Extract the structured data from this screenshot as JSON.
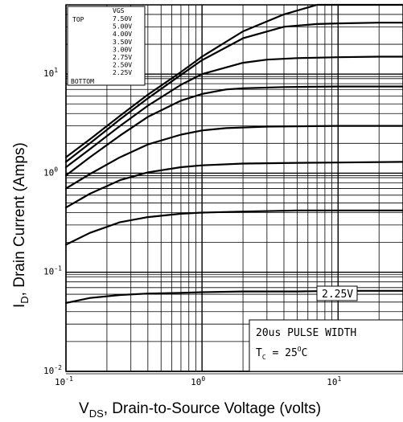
{
  "chart_data": {
    "type": "line",
    "x_scale": "log",
    "y_scale": "log",
    "xlim": [
      0.1,
      30
    ],
    "ylim": [
      0.01,
      50
    ],
    "grid": true,
    "xlabel": {
      "main": "V",
      "sub": "DS",
      "rest": ", Drain-to-Source Voltage (volts)"
    },
    "ylabel": {
      "main": "I",
      "sub": "D",
      "rest": ", Drain Current (Amps)"
    },
    "x_ticks": [
      {
        "base": "10",
        "exp": "-1",
        "value": 0.1
      },
      {
        "base": "10",
        "exp": "0",
        "value": 1
      },
      {
        "base": "10",
        "exp": "1",
        "value": 10
      }
    ],
    "y_ticks": [
      {
        "base": "10",
        "exp": "-2",
        "value": 0.01
      },
      {
        "base": "10",
        "exp": "-1",
        "value": 0.1
      },
      {
        "base": "10",
        "exp": "0",
        "value": 1
      },
      {
        "base": "10",
        "exp": "1",
        "value": 10
      }
    ],
    "legend": {
      "header": "VGS",
      "top_label": "TOP",
      "bottom_label": "BOTTOM",
      "entries": [
        "7.50V",
        "5.00V",
        "4.00V",
        "3.50V",
        "3.00V",
        "2.75V",
        "2.50V",
        "2.25V"
      ]
    },
    "series": [
      {
        "name": "7.50V",
        "x": [
          0.1,
          0.15,
          0.25,
          0.4,
          0.7,
          1.0,
          2.0,
          4.0,
          7.0,
          10.0,
          20.0,
          30.0
        ],
        "y": [
          1.45,
          2.2,
          3.8,
          6.2,
          10.5,
          15.0,
          27.0,
          40.0,
          50.0,
          50.0,
          50.0,
          50.0
        ]
      },
      {
        "name": "5.00V",
        "x": [
          0.1,
          0.15,
          0.25,
          0.4,
          0.7,
          1.0,
          2.0,
          4.0,
          7.0,
          10.0,
          20.0,
          30.0
        ],
        "y": [
          1.3,
          2.0,
          3.5,
          5.7,
          9.8,
          13.8,
          23.0,
          30.0,
          32.0,
          32.5,
          33.0,
          33.0
        ]
      },
      {
        "name": "4.00V",
        "x": [
          0.1,
          0.15,
          0.25,
          0.4,
          0.7,
          1.0,
          2.0,
          3.0,
          5.0,
          10.0,
          20.0,
          30.0
        ],
        "y": [
          1.15,
          1.75,
          3.0,
          4.8,
          7.8,
          10.0,
          13.0,
          14.0,
          14.5,
          14.8,
          15.0,
          15.0
        ]
      },
      {
        "name": "3.50V",
        "x": [
          0.1,
          0.15,
          0.25,
          0.4,
          0.7,
          1.0,
          1.5,
          2.0,
          4.0,
          10.0,
          20.0,
          30.0
        ],
        "y": [
          0.95,
          1.45,
          2.4,
          3.7,
          5.4,
          6.3,
          7.0,
          7.2,
          7.4,
          7.5,
          7.5,
          7.5
        ]
      },
      {
        "name": "3.00V",
        "x": [
          0.1,
          0.15,
          0.25,
          0.4,
          0.7,
          1.0,
          1.5,
          3.0,
          10.0,
          30.0
        ],
        "y": [
          0.7,
          0.98,
          1.45,
          1.95,
          2.45,
          2.7,
          2.85,
          2.95,
          3.0,
          3.0
        ]
      },
      {
        "name": "2.75V",
        "x": [
          0.1,
          0.15,
          0.25,
          0.4,
          0.7,
          1.0,
          2.0,
          5.0,
          10.0,
          30.0
        ],
        "y": [
          0.45,
          0.62,
          0.85,
          1.02,
          1.15,
          1.2,
          1.25,
          1.27,
          1.28,
          1.3
        ]
      },
      {
        "name": "2.50V",
        "x": [
          0.1,
          0.15,
          0.25,
          0.4,
          0.7,
          1.0,
          2.0,
          5.0,
          10.0,
          30.0
        ],
        "y": [
          0.19,
          0.25,
          0.32,
          0.36,
          0.39,
          0.4,
          0.41,
          0.42,
          0.42,
          0.42
        ]
      },
      {
        "name": "2.25V",
        "x": [
          0.1,
          0.15,
          0.25,
          0.4,
          0.7,
          1.0,
          2.0,
          5.0,
          10.0,
          30.0
        ],
        "y": [
          0.049,
          0.055,
          0.059,
          0.061,
          0.062,
          0.063,
          0.064,
          0.064,
          0.065,
          0.065
        ]
      }
    ],
    "annotations": {
      "curve_label": "2.25V",
      "pulse_width": "20us PULSE WIDTH",
      "temperature": {
        "main": "T",
        "sub": "C",
        "rest": " = 25",
        "sup": "O",
        "unit": "C"
      }
    }
  }
}
